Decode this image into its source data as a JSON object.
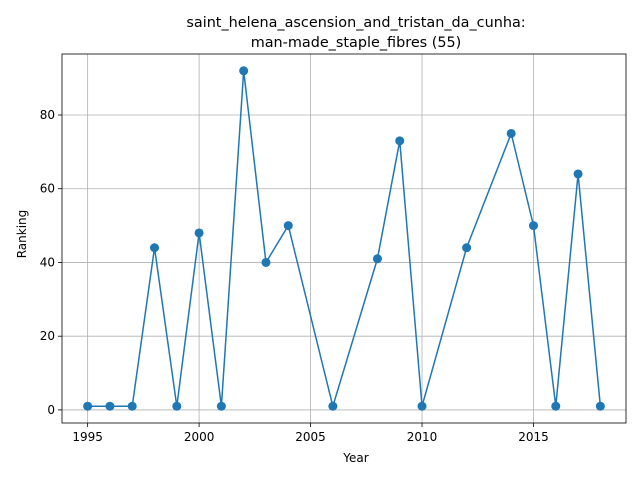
{
  "chart_data": {
    "type": "line",
    "title_line1": "saint_helena_ascension_and_tristan_da_cunha:",
    "title_line2": "man-made_staple_fibres (55)",
    "xlabel": "Year",
    "ylabel": "Ranking",
    "xlim": [
      1993.85,
      2019.15
    ],
    "ylim": [
      -3.55,
      96.55
    ],
    "xticks": [
      1995,
      2000,
      2005,
      2010,
      2015
    ],
    "yticks": [
      0,
      20,
      40,
      60,
      80
    ],
    "grid": true,
    "color": "#1f77b4",
    "marker": "circle",
    "x": [
      1995,
      1996,
      1997,
      1998,
      1999,
      2000,
      2001,
      2002,
      2003,
      2004,
      2006,
      2008,
      2009,
      2010,
      2012,
      2014,
      2015,
      2016,
      2017,
      2018
    ],
    "y": [
      1,
      1,
      1,
      44,
      1,
      48,
      1,
      92,
      40,
      50,
      1,
      41,
      73,
      1,
      44,
      75,
      50,
      1,
      64,
      1
    ]
  }
}
